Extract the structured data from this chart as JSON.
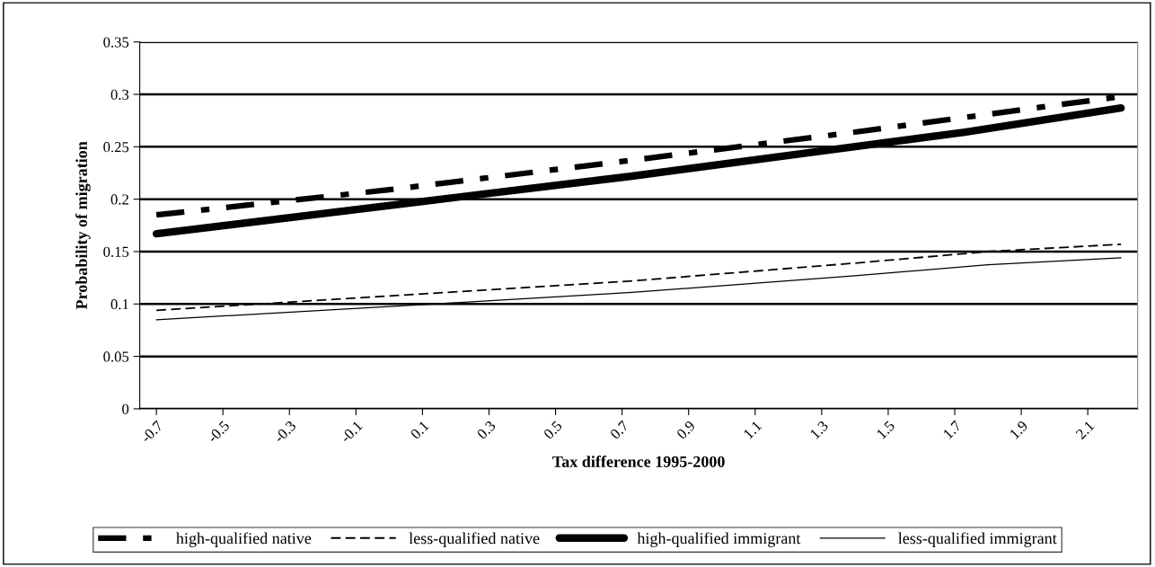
{
  "chart_data": {
    "type": "line",
    "xlabel": "Tax difference 1995-2000",
    "ylabel": "Probability of migration",
    "xlim": [
      -0.75,
      2.25
    ],
    "xticks": [
      {
        "value": -0.7,
        "label": "-0.7"
      },
      {
        "value": -0.5,
        "label": "-0.5"
      },
      {
        "value": -0.3,
        "label": "-0.3"
      },
      {
        "value": -0.1,
        "label": "-0.1"
      },
      {
        "value": 0.1,
        "label": "0.1"
      },
      {
        "value": 0.3,
        "label": "0.3"
      },
      {
        "value": 0.5,
        "label": "0.5"
      },
      {
        "value": 0.7,
        "label": "0.7"
      },
      {
        "value": 0.9,
        "label": "0.9"
      },
      {
        "value": 1.1,
        "label": "1.1"
      },
      {
        "value": 1.3,
        "label": "1.3"
      },
      {
        "value": 1.5,
        "label": "1.5"
      },
      {
        "value": 1.7,
        "label": "1.7"
      },
      {
        "value": 1.9,
        "label": "1.9"
      },
      {
        "value": 2.1,
        "label": "2.1"
      }
    ],
    "ylim": [
      0,
      0.35
    ],
    "yticks": [
      0,
      0.05,
      0.1,
      0.15,
      0.2,
      0.25,
      0.3,
      0.35
    ],
    "grid": "y",
    "legend": "bottom",
    "marker": "none",
    "series": [
      {
        "name": "high-qualified native",
        "color": "#000000",
        "line_style": "dashed",
        "x": [
          -0.7,
          0.0,
          0.7,
          1.4,
          2.2
        ],
        "values": [
          0.185,
          0.209,
          0.236,
          0.264,
          0.298
        ]
      },
      {
        "name": "less-qualified native",
        "color": "#000000",
        "line_style": "dashed",
        "x": [
          -0.7,
          0.73,
          1.4,
          1.8,
          2.2
        ],
        "values": [
          0.094,
          0.122,
          0.139,
          0.15,
          0.157
        ]
      },
      {
        "name": "high-qualified immigrant",
        "color": "#000000",
        "line_style": "solid",
        "x": [
          -0.7,
          0.13,
          0.73,
          1.35,
          1.73,
          2.2
        ],
        "values": [
          0.167,
          0.199,
          0.222,
          0.248,
          0.264,
          0.287
        ]
      },
      {
        "name": "less-qualified immigrant",
        "color": "#000000",
        "line_style": "solid",
        "x": [
          -0.7,
          0.13,
          0.73,
          1.4,
          1.8,
          2.2
        ],
        "values": [
          0.085,
          0.1,
          0.111,
          0.127,
          0.1375,
          0.144
        ]
      }
    ]
  }
}
